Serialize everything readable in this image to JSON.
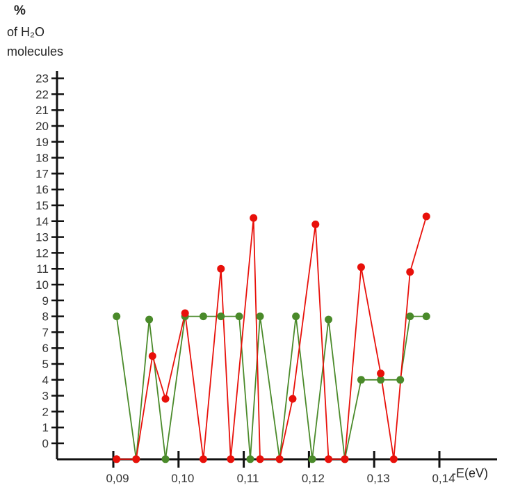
{
  "chart_data": {
    "type": "line",
    "ylabel_lines": [
      "%",
      "of H₂O",
      "molecules"
    ],
    "xlabel": "-E(eV)",
    "x_ticks": [
      "0,09",
      "0,10",
      "0,11",
      "0,12",
      "0,13",
      "0,14"
    ],
    "x_tick_values": [
      0.09,
      0.1,
      0.11,
      0.12,
      0.13,
      0.14
    ],
    "y_ticks": [
      "0",
      "1",
      "2",
      "3",
      "4",
      "5",
      "6",
      "7",
      "8",
      "9",
      "10",
      "11",
      "12",
      "13",
      "14",
      "15",
      "16",
      "17",
      "18",
      "19",
      "20",
      "21",
      "22",
      "23"
    ],
    "xlim": [
      0.082,
      0.145
    ],
    "ylim": [
      -1,
      23
    ],
    "series": [
      {
        "color": "#4a8a2a",
        "points": [
          [
            0.0905,
            8
          ],
          [
            0.0935,
            -1
          ],
          [
            0.0955,
            7.8
          ],
          [
            0.098,
            -1
          ],
          [
            0.101,
            8
          ],
          [
            0.1038,
            8
          ],
          [
            0.1065,
            8
          ],
          [
            0.1093,
            8
          ],
          [
            0.111,
            -1
          ],
          [
            0.1125,
            8
          ],
          [
            0.1155,
            -1
          ],
          [
            0.118,
            8
          ],
          [
            0.1205,
            -1
          ],
          [
            0.123,
            7.8
          ],
          [
            0.1255,
            -1
          ],
          [
            0.128,
            4
          ],
          [
            0.131,
            4
          ],
          [
            0.134,
            4
          ],
          [
            0.1355,
            8
          ],
          [
            0.138,
            8
          ]
        ]
      },
      {
        "color": "#e8100a",
        "points": [
          [
            0.0905,
            -1
          ],
          [
            0.0935,
            -1
          ],
          [
            0.096,
            5.5
          ],
          [
            0.098,
            2.8
          ],
          [
            0.101,
            8.2
          ],
          [
            0.1038,
            -1
          ],
          [
            0.1065,
            11
          ],
          [
            0.108,
            -1
          ],
          [
            0.1115,
            14.2
          ],
          [
            0.1125,
            -1
          ],
          [
            0.1155,
            -1
          ],
          [
            0.1175,
            2.8
          ],
          [
            0.121,
            13.8
          ],
          [
            0.123,
            -1
          ],
          [
            0.1255,
            -1
          ],
          [
            0.128,
            11.1
          ],
          [
            0.131,
            4.4
          ],
          [
            0.133,
            -1
          ],
          [
            0.1355,
            10.8
          ],
          [
            0.138,
            14.3
          ]
        ]
      }
    ]
  }
}
